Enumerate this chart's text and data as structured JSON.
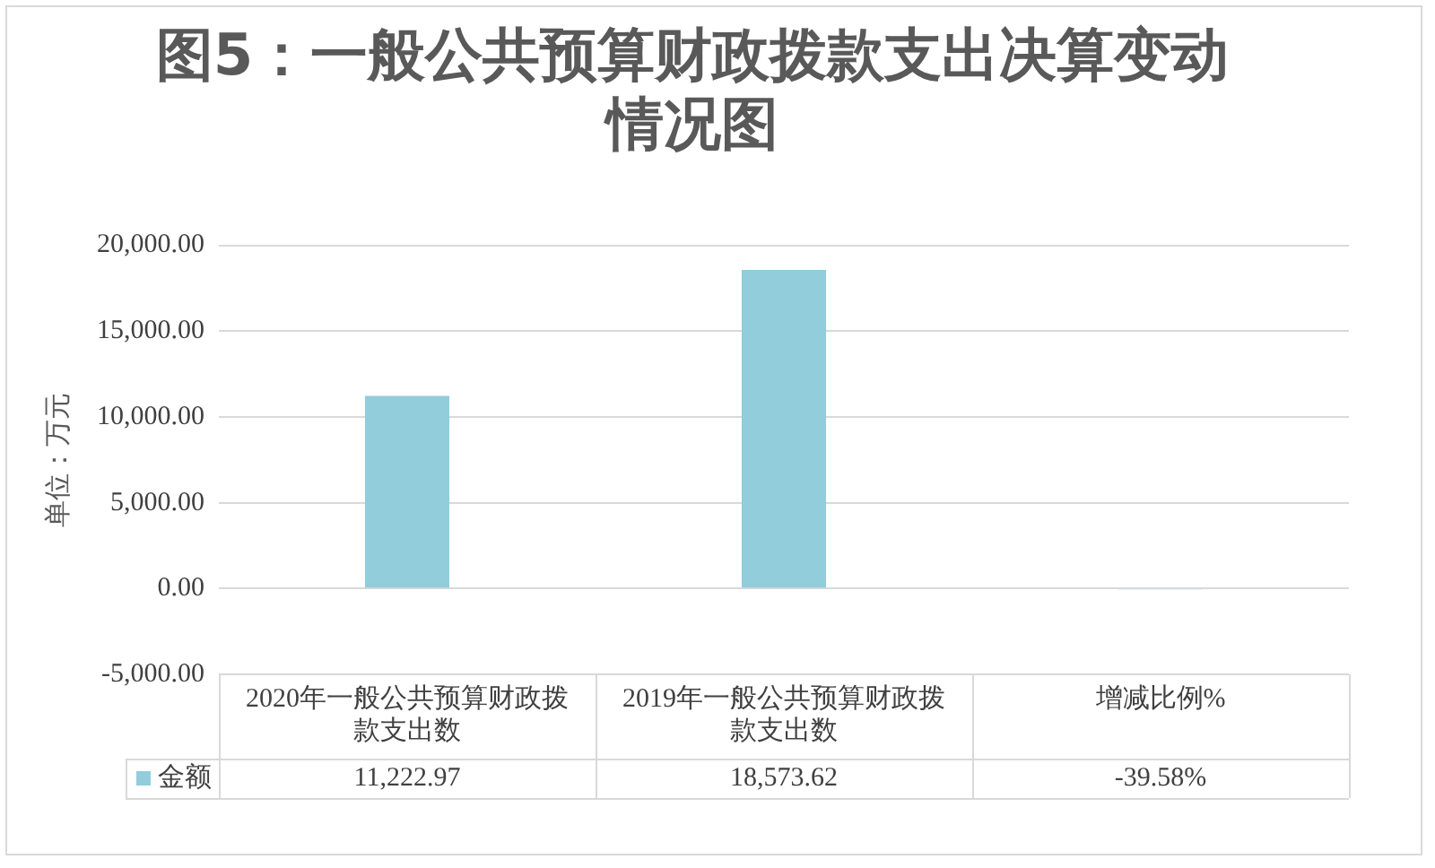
{
  "chart_data": {
    "type": "bar",
    "title": "图5：一般公共预算财政拨款支出决算变动情况图",
    "ylabel": "单位：万元",
    "categories": [
      "2020年一般公共预算财政拨款支出数",
      "2019年一般公共预算财政拨款支出数",
      "增减比例%"
    ],
    "series": [
      {
        "name": "金额",
        "color": "#92cddc",
        "values": [
          11222.97,
          18573.62,
          -39.58
        ],
        "value_labels": [
          "11,222.97",
          "18,573.62",
          "-39.58%"
        ]
      }
    ],
    "ylim": [
      -5000,
      20000
    ],
    "yticks": [
      {
        "value": -5000,
        "label": "-5,000.00"
      },
      {
        "value": 0,
        "label": "0.00"
      },
      {
        "value": 5000,
        "label": "5,000.00"
      },
      {
        "value": 10000,
        "label": "10,000.00"
      },
      {
        "value": 15000,
        "label": "15,000.00"
      },
      {
        "value": 20000,
        "label": "20,000.00"
      }
    ],
    "grid": "y",
    "legend": "bottom"
  }
}
